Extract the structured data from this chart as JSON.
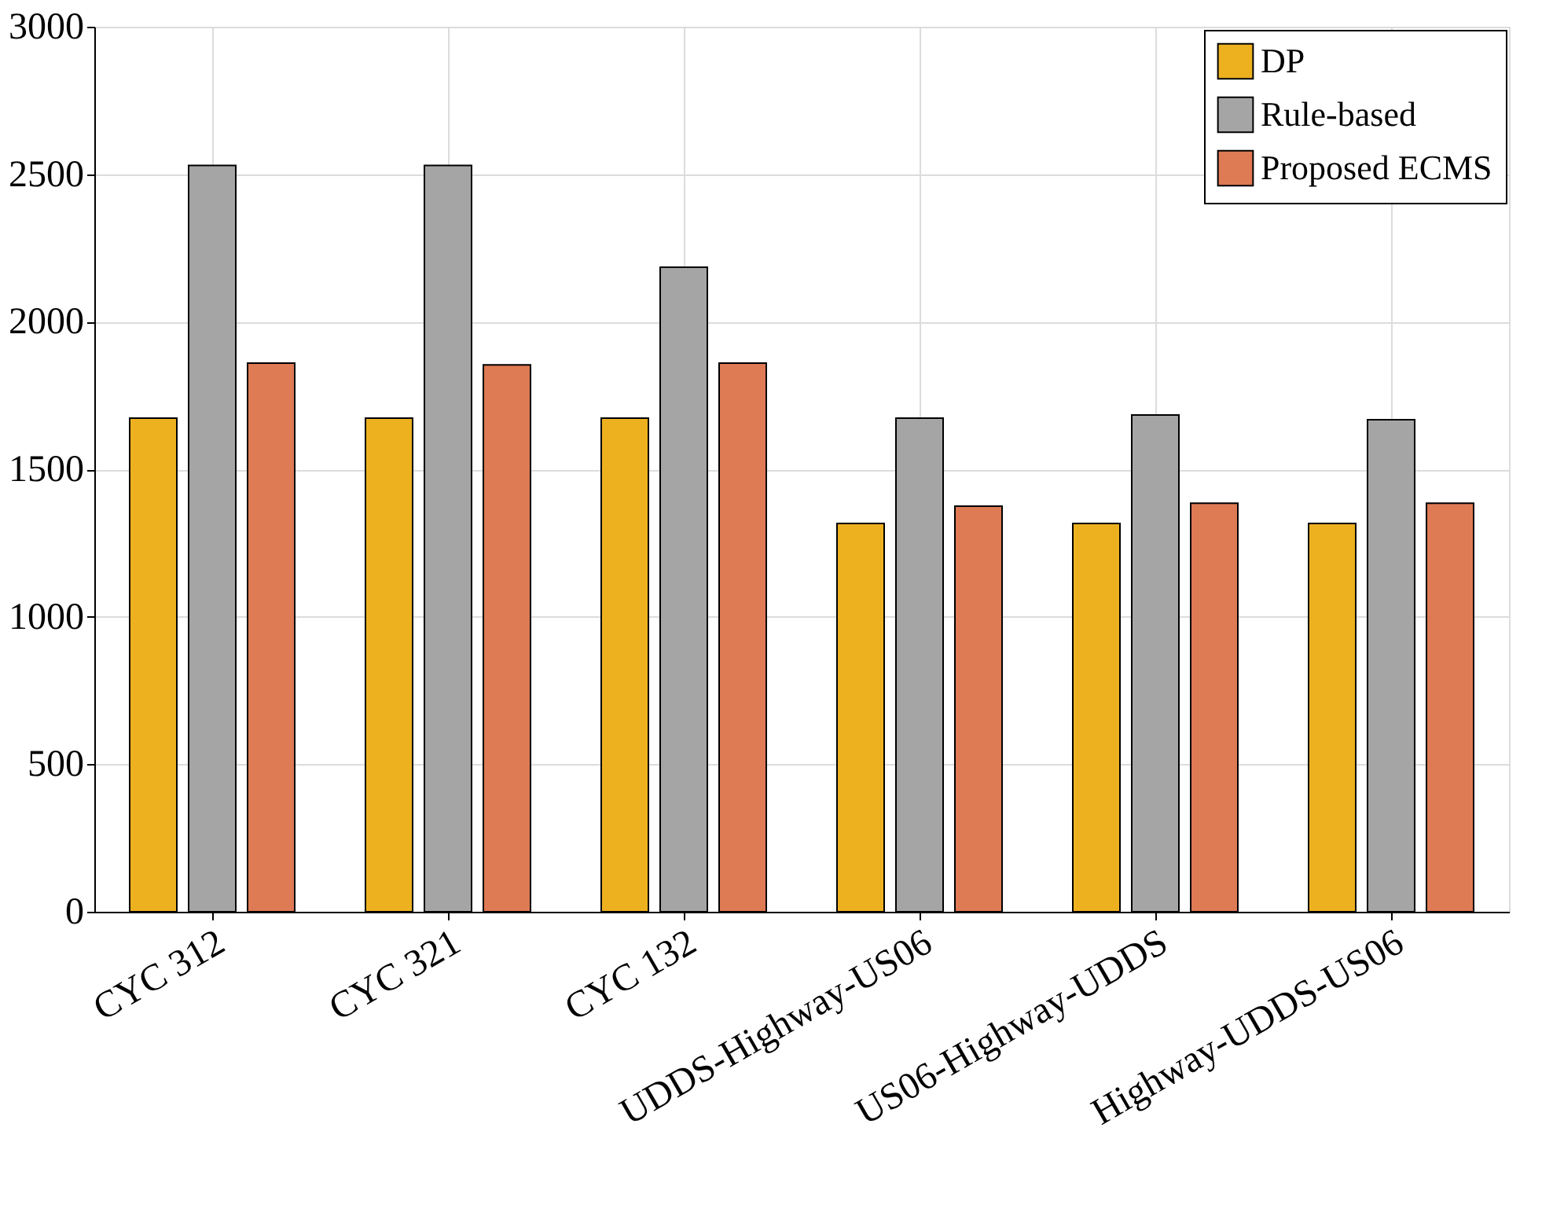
{
  "chart_data": {
    "type": "bar",
    "categories": [
      "CYC 312",
      "CYC 321",
      "CYC 132",
      "UDDS-Highway-US06",
      "US06-Highway-UDDS",
      "Highway-UDDS-US06"
    ],
    "series": [
      {
        "name": "DP",
        "color": "#edb120",
        "values": [
          1673,
          1673,
          1673,
          1316,
          1316,
          1316
        ]
      },
      {
        "name": "Rule-based",
        "color": "#a5a5a5",
        "values": [
          2530,
          2530,
          2185,
          1673,
          1684,
          1668
        ]
      },
      {
        "name": "Proposed ECMS",
        "color": "#de7a54",
        "values": [
          1860,
          1854,
          1860,
          1375,
          1385,
          1385
        ]
      }
    ],
    "ylim": [
      0,
      3000
    ],
    "yticks": [
      0,
      500,
      1000,
      1500,
      2000,
      2500,
      3000
    ],
    "grid": true,
    "legend": "top right"
  }
}
